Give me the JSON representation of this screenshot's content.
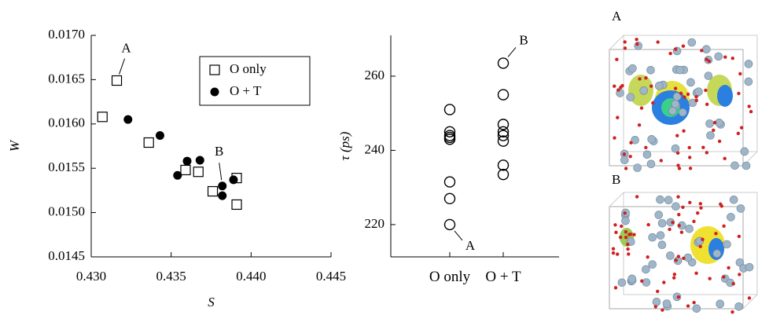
{
  "chart_data": [
    {
      "type": "scatter",
      "x_label": "S",
      "y_label": "W",
      "xlim": [
        0.43,
        0.445
      ],
      "xticks": [
        {
          "value": 0.43,
          "label": "0.430"
        },
        0.435,
        {
          "value": 0.44,
          "label": "0.440"
        },
        0.445
      ],
      "ylim": [
        0.0145,
        0.017
      ],
      "yticks": [
        0.0145,
        {
          "value": 0.015,
          "label": "0.0150"
        },
        0.0155,
        {
          "value": 0.016,
          "label": "0.0160"
        },
        0.0165,
        {
          "value": 0.017,
          "label": "0.0170"
        }
      ],
      "legend": "upper right",
      "series": [
        {
          "name": "O only",
          "marker": "square",
          "color": "#000000",
          "x": [
            0.4316,
            0.4307,
            0.4336,
            0.4359,
            0.4367,
            0.4376,
            0.4391,
            0.4391
          ],
          "values": [
            0.01649,
            0.01608,
            0.01579,
            0.01548,
            0.01546,
            0.01524,
            0.01539,
            0.01509
          ]
        },
        {
          "name": "O + T",
          "marker": "circle",
          "color": "#000000",
          "x": [
            0.4323,
            0.4343,
            0.4354,
            0.436,
            0.4368,
            0.4382,
            0.4382,
            0.4389
          ],
          "values": [
            0.01605,
            0.01587,
            0.01542,
            0.01558,
            0.01559,
            0.0153,
            0.01519,
            0.01537
          ]
        }
      ],
      "annotations": [
        "A",
        "B"
      ]
    },
    {
      "type": "strip",
      "y_label": "τ (ps)",
      "categories": [
        "O only",
        "O + T"
      ],
      "ylim": [
        211.3,
        271
      ],
      "yticks": [
        220,
        240,
        260
      ],
      "values": [
        [
          251,
          245,
          244,
          243.5,
          243,
          231.5,
          227,
          220
        ],
        [
          263.5,
          255,
          247,
          245,
          244,
          242.5,
          236,
          233.5
        ]
      ],
      "annotations": [
        "A",
        "B"
      ]
    }
  ],
  "panels": [
    {
      "label": "A"
    },
    {
      "label": "B"
    }
  ]
}
